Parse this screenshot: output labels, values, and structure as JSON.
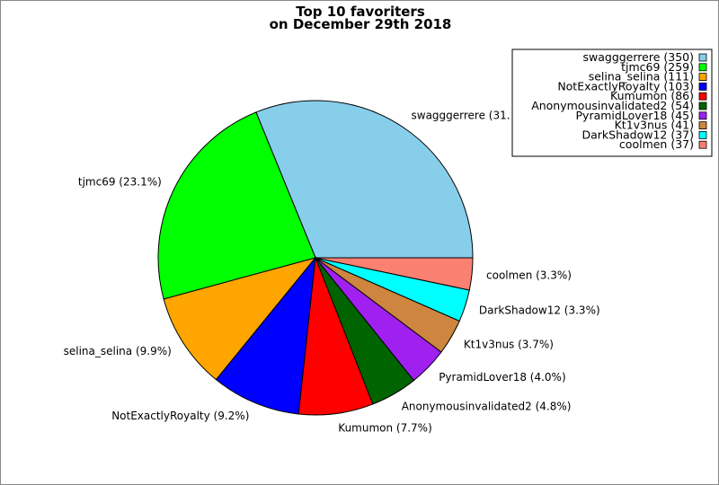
{
  "chart_data": {
    "type": "pie",
    "title": "Top 10 favoriters",
    "subtitle": "on December 29th 2018",
    "legend_placement": "top-right",
    "slices": [
      {
        "name": "swagggerrere",
        "value": 350,
        "legend": "swagggerrere (350)",
        "label": "swagggerrere (31.",
        "color": "#87ceeb"
      },
      {
        "name": "tjmc69",
        "value": 259,
        "legend": "tjmc69 (259)",
        "label": "tjmc69 (23.1%)",
        "color": "#00ff00"
      },
      {
        "name": "selina_selina",
        "value": 111,
        "legend": "selina_selina (111)",
        "label": "selina_selina (9.9%)",
        "color": "#ffa500"
      },
      {
        "name": "NotExactlyRoyalty",
        "value": 103,
        "legend": "NotExactlyRoyalty (103)",
        "label": "NotExactlyRoyalty (9.2%)",
        "color": "#0000ff"
      },
      {
        "name": "Kumumon",
        "value": 86,
        "legend": "Kumumon (86)",
        "label": "Kumumon (7.7%)",
        "color": "#ff0000"
      },
      {
        "name": "Anonymousinvalidated2",
        "value": 54,
        "legend": "Anonymousinvalidated2 (54)",
        "label": "Anonymousinvalidated2 (4.8%)",
        "color": "#006400"
      },
      {
        "name": "PyramidLover18",
        "value": 45,
        "legend": "PyramidLover18 (45)",
        "label": "PyramidLover18 (4.0%)",
        "color": "#a020f0"
      },
      {
        "name": "Kt1v3nus",
        "value": 41,
        "legend": "Kt1v3nus (41)",
        "label": "Kt1v3nus (3.7%)",
        "color": "#cd853f"
      },
      {
        "name": "DarkShadow12",
        "value": 37,
        "legend": "DarkShadow12 (37)",
        "label": "DarkShadow12 (3.3%)",
        "color": "#00ffff"
      },
      {
        "name": "coolmen",
        "value": 37,
        "legend": "coolmen (37)",
        "label": "coolmen (3.3%)",
        "color": "#fa8072"
      }
    ]
  }
}
